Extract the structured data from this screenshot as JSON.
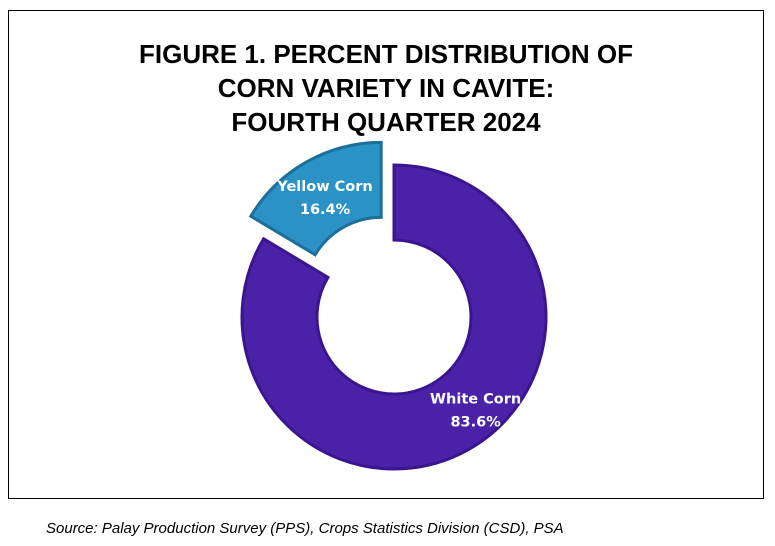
{
  "chart_data": {
    "type": "pie",
    "title_lines": [
      "FIGURE 1. PERCENT DISTRIBUTION OF",
      "CORN VARIETY IN CAVITE:",
      "FOURTH QUARTER 2024"
    ],
    "categories": [
      "White Corn",
      "Yellow Corn"
    ],
    "values": [
      83.6,
      16.4
    ],
    "value_labels": [
      "83.6%",
      "16.4%"
    ],
    "colors": {
      "White Corn": "#4a22a8",
      "Yellow Corn": "#2a92c4"
    },
    "donut": true,
    "exploded": [
      "Yellow Corn"
    ],
    "legend": "none"
  },
  "source": "Source: Palay Production Survey (PPS), Crops Statistics Division (CSD), PSA"
}
